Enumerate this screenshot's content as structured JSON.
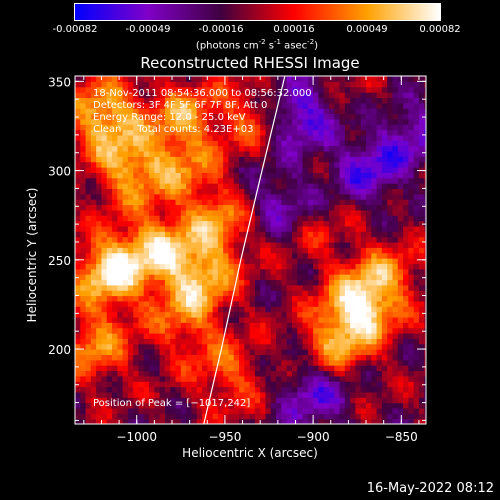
{
  "colorbar": {
    "ticks": [
      "-0.00082",
      "-0.00049",
      "-0.00016",
      "0.00016",
      "0.00049",
      "0.00082"
    ],
    "unit_main": "(photons cm",
    "unit_exp1": "-2",
    "unit_mid1": " s",
    "unit_exp2": "-1",
    "unit_mid2": " asec",
    "unit_exp3": "-2",
    "unit_close": ")"
  },
  "footer_date": "16-May-2022 08:12",
  "chart_data": {
    "type": "heatmap",
    "title": "Reconstructed RHESSI Image",
    "xlabel": "Heliocentric X (arcsec)",
    "ylabel": "Heliocentric Y (arcsec)",
    "xlim": [
      -1035,
      -836
    ],
    "ylim": [
      158,
      353
    ],
    "x_ticks": [
      -1000,
      -950,
      -900,
      -850
    ],
    "y_ticks": [
      200,
      250,
      300,
      350
    ],
    "x_tick_labels": [
      "−1000",
      "−950",
      "−900",
      "−850"
    ],
    "y_tick_labels": [
      "200",
      "250",
      "300",
      "350"
    ],
    "color_range": [
      -0.00082,
      0.00082
    ],
    "colormap": [
      "#0000ff",
      "#8000c8",
      "#400040",
      "#ff0000",
      "#ffa000",
      "#ffffff"
    ],
    "annotations": [
      "18-Nov-2011 08:54:36.000 to 08:56:32.000",
      "Detectors: 3F 4F 5F 6F 7F 8F, Att 0",
      "Energy Range: 12.0 - 25.0 keV",
      "Clean     Total counts: 4.23E+03"
    ],
    "peak_label": "Position of Peak = [−1017,242]",
    "limb_curve": [
      [
        -962,
        158
      ],
      [
        -952,
        200
      ],
      [
        -941,
        250
      ],
      [
        -929,
        300
      ],
      [
        -916,
        353
      ]
    ],
    "bright_regions": [
      {
        "x": -1020,
        "y": 330,
        "value": 0.0007
      },
      {
        "x": -1005,
        "y": 300,
        "value": 0.0006
      },
      {
        "x": -975,
        "y": 330,
        "value": 0.0005
      },
      {
        "x": -975,
        "y": 300,
        "value": 0.0004
      },
      {
        "x": -1017,
        "y": 242,
        "value": 0.00082
      },
      {
        "x": -990,
        "y": 255,
        "value": 0.0006
      },
      {
        "x": -965,
        "y": 240,
        "value": 0.0006
      },
      {
        "x": -955,
        "y": 270,
        "value": 0.0005
      },
      {
        "x": -975,
        "y": 215,
        "value": 0.0004
      },
      {
        "x": -1025,
        "y": 200,
        "value": 0.0005
      },
      {
        "x": -950,
        "y": 185,
        "value": 0.0004
      },
      {
        "x": -875,
        "y": 222,
        "value": 0.0008
      },
      {
        "x": -890,
        "y": 200,
        "value": 0.0005
      },
      {
        "x": -860,
        "y": 240,
        "value": 0.0004
      },
      {
        "x": -935,
        "y": 330,
        "value": 0.0004
      },
      {
        "x": -900,
        "y": 265,
        "value": 0.0002
      },
      {
        "x": -870,
        "y": 335,
        "value": 0.0001
      }
    ],
    "dark_regions": [
      {
        "x": -910,
        "y": 330,
        "value": -0.0006
      },
      {
        "x": -870,
        "y": 300,
        "value": -0.0005
      },
      {
        "x": -920,
        "y": 280,
        "value": -0.0004
      },
      {
        "x": -900,
        "y": 175,
        "value": -0.0005
      },
      {
        "x": -845,
        "y": 320,
        "value": -0.0004
      }
    ]
  }
}
